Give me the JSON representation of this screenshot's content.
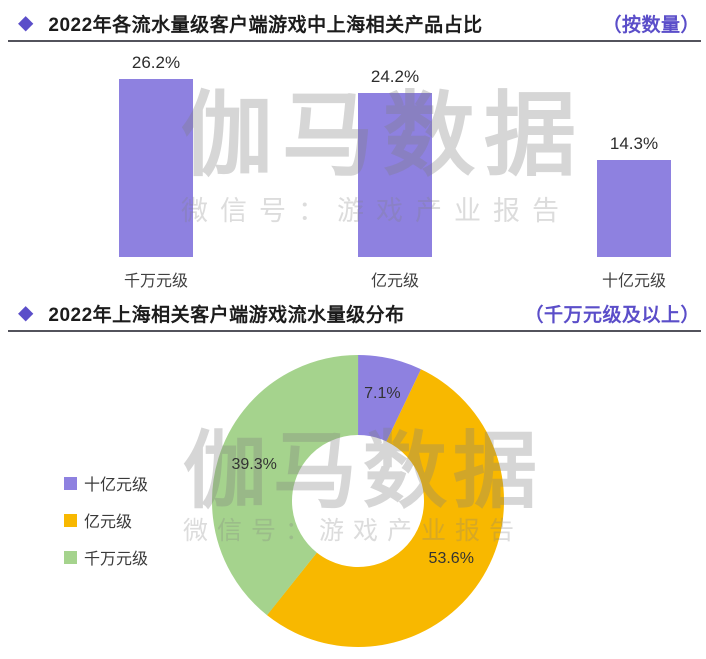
{
  "theme": {
    "accent_purple": "#5B4EC9",
    "bar_purple": "#8E81E0",
    "donut_yellow": "#F8B800",
    "donut_green": "#A5D38D",
    "divider_gray": "#53535C"
  },
  "watermark": {
    "brand": "伽马数据",
    "subtitle": "微信号：游戏产业报告"
  },
  "sections": [
    {
      "bullet": "◆",
      "title": "2022年各流水量级客户端游戏中上海相关产品占比",
      "note": "（按数量）"
    },
    {
      "bullet": "◆",
      "title": "2022年上海相关客户端游戏流水量级分布",
      "note": "（千万元级及以上）"
    }
  ],
  "chart_data": [
    {
      "type": "bar",
      "title": "2022年各流水量级客户端游戏中上海相关产品占比",
      "subtitle": "（按数量）",
      "categories": [
        "千万元级",
        "亿元级",
        "十亿元级"
      ],
      "values": [
        26.2,
        24.2,
        14.3
      ],
      "value_labels": [
        "26.2%",
        "24.2%",
        "14.3%"
      ],
      "unit": "%",
      "bar_color": "#8E81E0",
      "xlabel": "",
      "ylabel": "",
      "ylim": [
        0,
        30
      ],
      "grid": false,
      "axes_hidden": true,
      "data_labels_position": "above-bar"
    },
    {
      "type": "pie",
      "variant": "donut",
      "title": "2022年上海相关客户端游戏流水量级分布",
      "subtitle": "（千万元级及以上）",
      "start_angle_deg": 0,
      "direction": "clockwise",
      "segments": [
        {
          "label": "十亿元级",
          "value": 7.1,
          "value_label": "7.1%",
          "color": "#8E81E0"
        },
        {
          "label": "亿元级",
          "value": 53.6,
          "value_label": "53.6%",
          "color": "#F8B800"
        },
        {
          "label": "千万元级",
          "value": 39.3,
          "value_label": "39.3%",
          "color": "#A5D38D"
        }
      ],
      "legend_position": "left",
      "legend_order": [
        "十亿元级",
        "亿元级",
        "千万元级"
      ]
    }
  ]
}
